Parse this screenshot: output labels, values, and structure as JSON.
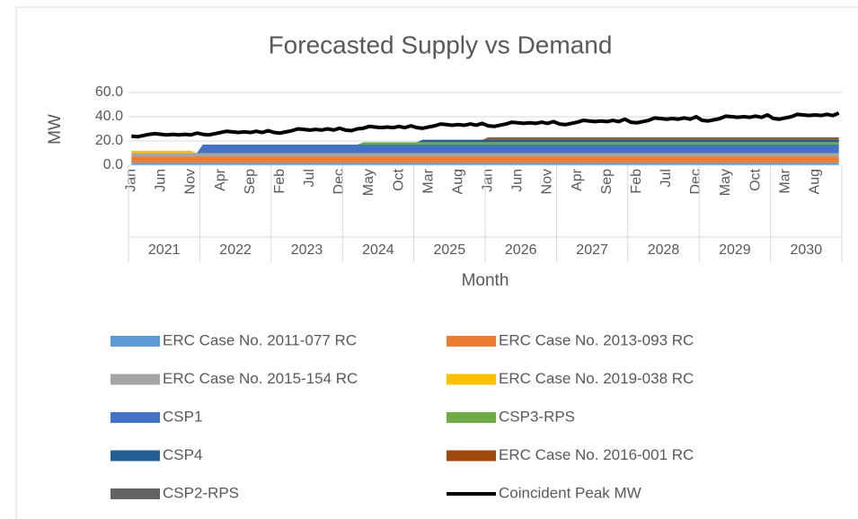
{
  "chart_data": {
    "type": "stacked-area-line",
    "title": "Forecasted Supply vs Demand",
    "ylabel": "MW",
    "xlabel": "Month",
    "ylim": [
      0,
      60
    ],
    "yticks": [
      {
        "value": 0,
        "label": "0.0"
      },
      {
        "value": 20,
        "label": "20.0"
      },
      {
        "value": 40,
        "label": "40.0"
      },
      {
        "value": 60,
        "label": "60.0"
      }
    ],
    "grid": true,
    "legend": "bottom",
    "years": [
      "2021",
      "2022",
      "2023",
      "2024",
      "2025",
      "2026",
      "2027",
      "2028",
      "2029",
      "2030"
    ],
    "categories": [
      "Jan",
      null,
      null,
      null,
      null,
      "Jun",
      null,
      null,
      null,
      null,
      "Nov",
      null,
      null,
      null,
      null,
      "Apr",
      null,
      null,
      null,
      null,
      "Sep",
      null,
      null,
      null,
      null,
      "Feb",
      null,
      null,
      null,
      null,
      "Jul",
      null,
      null,
      null,
      null,
      "Dec",
      null,
      null,
      null,
      null,
      "May",
      null,
      null,
      null,
      null,
      "Oct",
      null,
      null,
      null,
      null,
      "Mar",
      null,
      null,
      null,
      null,
      "Aug",
      null,
      null,
      null,
      null,
      "Jan",
      null,
      null,
      null,
      null,
      "Jun",
      null,
      null,
      null,
      null,
      "Nov",
      null,
      null,
      null,
      null,
      "Apr",
      null,
      null,
      null,
      null,
      "Sep",
      null,
      null,
      null,
      null,
      "Feb",
      null,
      null,
      null,
      null,
      "Jul",
      null,
      null,
      null,
      null,
      "Dec",
      null,
      null,
      null,
      null,
      "May",
      null,
      null,
      null,
      null,
      "Oct",
      null,
      null,
      null,
      null,
      "Mar",
      null,
      null,
      null,
      null,
      "Aug",
      null,
      null,
      null,
      null
    ],
    "series": [
      {
        "name": "ERC Case No. 2011-077 RC",
        "color": "#5b9bd5",
        "kind": "area",
        "values": [
          2,
          2,
          2,
          2,
          2,
          2,
          2,
          2,
          2,
          2,
          2,
          2,
          2,
          2,
          2,
          2,
          2,
          2,
          2,
          2,
          2,
          2,
          2,
          2,
          2,
          2,
          2,
          2,
          2,
          2,
          2,
          2,
          2,
          2,
          2,
          2,
          2,
          2,
          2,
          2,
          2,
          2,
          2,
          2,
          2,
          2,
          2,
          2,
          2,
          2,
          2,
          2,
          2,
          2,
          2,
          2,
          2,
          2,
          2,
          2,
          2,
          2,
          2,
          2,
          2,
          2,
          2,
          2,
          2,
          2,
          2,
          2,
          2,
          2,
          2,
          2,
          2,
          2,
          2,
          2,
          2,
          2,
          2,
          2,
          2,
          2,
          2,
          2,
          2,
          2,
          2,
          2,
          2,
          2,
          2,
          2,
          2,
          2,
          2,
          2,
          2,
          2,
          2,
          2,
          2,
          2,
          2,
          2,
          2,
          2,
          2,
          2,
          2,
          2,
          2,
          2,
          2,
          2,
          2,
          2
        ]
      },
      {
        "name": "ERC Case No. 2013-093 RC",
        "color": "#ed7d31",
        "kind": "area",
        "values": [
          5,
          5,
          5,
          5,
          5,
          5,
          5,
          5,
          5,
          5,
          5,
          5,
          5,
          5,
          5,
          5,
          5,
          5,
          5,
          5,
          5,
          5,
          5,
          5,
          5,
          5,
          5,
          5,
          5,
          5,
          5,
          5,
          5,
          5,
          5,
          5,
          5,
          5,
          5,
          5,
          5,
          5,
          5,
          5,
          5,
          5,
          5,
          5,
          5,
          5,
          5,
          5,
          5,
          5,
          5,
          5,
          5,
          5,
          5,
          5,
          5,
          5,
          5,
          5,
          5,
          5,
          5,
          5,
          5,
          5,
          5,
          5,
          5,
          5,
          5,
          5,
          5,
          5,
          5,
          5,
          5,
          5,
          5,
          5,
          5,
          5,
          5,
          5,
          5,
          5,
          5,
          5,
          5,
          5,
          5,
          5,
          5,
          5,
          5,
          5,
          5,
          5,
          5,
          5,
          5,
          5,
          5,
          5,
          5,
          5,
          5,
          5,
          5,
          5,
          5,
          5,
          5,
          5,
          5,
          5
        ]
      },
      {
        "name": "ERC Case No. 2015-154 RC",
        "color": "#a5a5a5",
        "kind": "area",
        "values": [
          3,
          3,
          3,
          3,
          3,
          3,
          3,
          3,
          3,
          3,
          3,
          3,
          3,
          3,
          3,
          3,
          3,
          3,
          3,
          3,
          3,
          3,
          3,
          3,
          3,
          3,
          3,
          3,
          3,
          3,
          3,
          3,
          3,
          3,
          3,
          3,
          3,
          3,
          3,
          3,
          3,
          3,
          3,
          3,
          3,
          3,
          3,
          3,
          3,
          3,
          3,
          3,
          3,
          3,
          3,
          3,
          3,
          3,
          3,
          3,
          3,
          3,
          3,
          3,
          3,
          3,
          3,
          3,
          3,
          3,
          3,
          3,
          3,
          3,
          3,
          3,
          3,
          3,
          3,
          3,
          3,
          3,
          3,
          3,
          3,
          3,
          3,
          3,
          3,
          3,
          3,
          3,
          3,
          3,
          3,
          3,
          3,
          3,
          3,
          3,
          3,
          3,
          3,
          3,
          3,
          3,
          3,
          3,
          3,
          3,
          3,
          3,
          3,
          3,
          3,
          3,
          3,
          3,
          3,
          3
        ]
      },
      {
        "name": "ERC Case No. 2019-038 RC",
        "color": "#ffc000",
        "kind": "area",
        "values": [
          2,
          2,
          2,
          2,
          2,
          2,
          2,
          2,
          2,
          2,
          2,
          0,
          0,
          0,
          0,
          0,
          0,
          0,
          0,
          0,
          0,
          0,
          0,
          0,
          0,
          0,
          0,
          0,
          0,
          0,
          0,
          0,
          0,
          0,
          0,
          0,
          0,
          0,
          0,
          0,
          0,
          0,
          0,
          0,
          0,
          0,
          0,
          0,
          0,
          0,
          0,
          0,
          0,
          0,
          0,
          0,
          0,
          0,
          0,
          0,
          0,
          0,
          0,
          0,
          0,
          0,
          0,
          0,
          0,
          0,
          0,
          0,
          0,
          0,
          0,
          0,
          0,
          0,
          0,
          0,
          0,
          0,
          0,
          0,
          0,
          0,
          0,
          0,
          0,
          0,
          0,
          0,
          0,
          0,
          0,
          0,
          0,
          0,
          0,
          0,
          0,
          0,
          0,
          0,
          0,
          0,
          0,
          0,
          0,
          0,
          0,
          0,
          0,
          0,
          0,
          0,
          0,
          0,
          0,
          0
        ]
      },
      {
        "name": "CSP1",
        "color": "#4472c4",
        "kind": "area",
        "values": [
          0,
          0,
          0,
          0,
          0,
          0,
          0,
          0,
          0,
          0,
          0,
          0,
          7,
          7,
          7,
          7,
          7,
          7,
          7,
          7,
          7,
          7,
          7,
          7,
          7,
          7,
          7,
          7,
          7,
          7,
          7,
          7,
          7,
          7,
          7,
          7,
          7,
          7,
          7,
          7,
          7,
          7,
          7,
          7,
          7,
          7,
          7,
          7,
          7,
          7,
          7,
          7,
          7,
          7,
          7,
          7,
          7,
          7,
          7,
          7,
          7,
          7,
          7,
          7,
          7,
          7,
          7,
          7,
          7,
          7,
          7,
          7,
          7,
          7,
          7,
          7,
          7,
          7,
          7,
          7,
          7,
          7,
          7,
          7,
          7,
          7,
          7,
          7,
          7,
          7,
          7,
          7,
          7,
          7,
          7,
          7,
          7,
          7,
          7,
          7,
          7,
          7,
          7,
          7,
          7,
          7,
          7,
          7,
          7,
          7,
          7,
          7,
          7,
          7,
          7,
          7,
          7,
          7,
          7,
          7
        ]
      },
      {
        "name": "CSP3-RPS",
        "color": "#70ad47",
        "kind": "area",
        "values": [
          0,
          0,
          0,
          0,
          0,
          0,
          0,
          0,
          0,
          0,
          0,
          0,
          0,
          0,
          0,
          0,
          0,
          0,
          0,
          0,
          0,
          0,
          0,
          0,
          0,
          0,
          0,
          0,
          0,
          0,
          0,
          0,
          0,
          0,
          0,
          0,
          0,
          0,
          0,
          2,
          2,
          2,
          2,
          2,
          2,
          2,
          2,
          2,
          2,
          2,
          2,
          2,
          2,
          2,
          2,
          2,
          2,
          2,
          2,
          2,
          2,
          2,
          2,
          2,
          2,
          2,
          2,
          2,
          2,
          2,
          2,
          2,
          2,
          2,
          2,
          2,
          2,
          2,
          2,
          2,
          2,
          2,
          2,
          2,
          2,
          2,
          2,
          2,
          2,
          2,
          2,
          2,
          2,
          2,
          2,
          2,
          2,
          2,
          2,
          2,
          2,
          2,
          2,
          2,
          2,
          2,
          2,
          2,
          2,
          2,
          2,
          2,
          2,
          2,
          2,
          2,
          2,
          2,
          2,
          2
        ]
      },
      {
        "name": "CSP4",
        "color": "#255e91",
        "kind": "area",
        "values": [
          0,
          0,
          0,
          0,
          0,
          0,
          0,
          0,
          0,
          0,
          0,
          0,
          0,
          0,
          0,
          0,
          0,
          0,
          0,
          0,
          0,
          0,
          0,
          0,
          0,
          0,
          0,
          0,
          0,
          0,
          0,
          0,
          0,
          0,
          0,
          0,
          0,
          0,
          0,
          0,
          0,
          0,
          0,
          0,
          0,
          0,
          0,
          0,
          0,
          2,
          2,
          2,
          2,
          2,
          2,
          2,
          2,
          2,
          2,
          2,
          2,
          2,
          2,
          2,
          2,
          2,
          2,
          2,
          2,
          2,
          2,
          2,
          2,
          2,
          2,
          2,
          2,
          2,
          2,
          2,
          2,
          2,
          2,
          2,
          2,
          2,
          2,
          2,
          2,
          2,
          2,
          2,
          2,
          2,
          2,
          2,
          2,
          2,
          2,
          2,
          2,
          2,
          2,
          2,
          2,
          2,
          2,
          2,
          2,
          2,
          2,
          2,
          2,
          2,
          2,
          2,
          2,
          2,
          2,
          2
        ]
      },
      {
        "name": "ERC Case No. 2016-001 RC",
        "color": "#9e480e",
        "kind": "area",
        "values": [
          0,
          0,
          0,
          0,
          0,
          0,
          0,
          0,
          0,
          0,
          0,
          0,
          0,
          0,
          0,
          0,
          0,
          0,
          0,
          0,
          0,
          0,
          0,
          0,
          0,
          0,
          0,
          0,
          0,
          0,
          0,
          0,
          0,
          0,
          0,
          0,
          0,
          0,
          0,
          0,
          0,
          0,
          0,
          0,
          0,
          0,
          0,
          0,
          0,
          0,
          0,
          0,
          0,
          0,
          0,
          0,
          0,
          0,
          0,
          0,
          1,
          1,
          1,
          1,
          1,
          1,
          1,
          1,
          1,
          1,
          1,
          1,
          1,
          1,
          1,
          1,
          1,
          1,
          1,
          1,
          1,
          1,
          1,
          1,
          1,
          1,
          1,
          1,
          1,
          1,
          1,
          1,
          1,
          1,
          1,
          1,
          1,
          1,
          1,
          1,
          1,
          1,
          1,
          1,
          1,
          1,
          1,
          1,
          1,
          1,
          1,
          1,
          1,
          1,
          1,
          1,
          1,
          1,
          1,
          1
        ]
      },
      {
        "name": "CSP2-RPS",
        "color": "#636363",
        "kind": "area",
        "values": [
          0,
          0,
          0,
          0,
          0,
          0,
          0,
          0,
          0,
          0,
          0,
          0,
          0,
          0,
          0,
          0,
          0,
          0,
          0,
          0,
          0,
          0,
          0,
          0,
          0,
          0,
          0,
          0,
          0,
          0,
          0,
          0,
          0,
          0,
          0,
          0,
          0,
          0,
          0,
          0,
          0,
          0,
          0,
          0,
          0,
          0,
          0,
          0,
          0,
          0,
          0,
          0,
          0,
          0,
          0,
          0,
          0,
          0,
          0,
          0,
          1,
          1,
          1,
          1,
          1,
          1,
          1,
          1,
          1,
          1,
          1,
          1,
          1,
          1,
          1,
          1,
          1,
          1,
          1,
          1,
          1,
          1,
          1,
          1,
          1,
          1,
          1,
          1,
          1,
          1,
          1,
          1,
          1,
          1,
          1,
          1,
          1,
          1,
          1,
          1,
          1,
          1,
          1,
          1,
          1,
          1,
          1,
          1,
          1,
          1,
          1,
          1,
          1,
          1,
          1,
          1,
          1,
          1,
          1,
          1
        ]
      },
      {
        "name": "Coincident Peak MW",
        "color": "#000000",
        "kind": "line",
        "values": [
          24,
          23.5,
          24.5,
          25.5,
          26,
          25.5,
          25,
          25.5,
          25,
          25.5,
          25,
          26.5,
          25.5,
          25,
          26,
          27,
          28,
          27.5,
          27,
          27.5,
          27,
          28,
          27,
          28.5,
          27,
          26.5,
          27.5,
          28.5,
          30,
          29.5,
          29,
          29.5,
          29,
          30,
          29,
          30.5,
          29,
          28.5,
          30,
          30.5,
          32,
          31.5,
          31,
          31.5,
          31,
          32,
          31,
          32.5,
          31,
          30.5,
          31.5,
          32.5,
          34,
          33.5,
          33,
          33.5,
          33,
          34,
          33,
          34.5,
          32.5,
          32,
          33,
          34,
          35.5,
          35,
          34.5,
          35,
          34.5,
          35.5,
          34.5,
          36,
          34,
          33.5,
          34.5,
          35.5,
          37,
          36.5,
          36,
          36.5,
          36,
          37,
          36,
          38,
          35.5,
          35,
          36,
          37,
          39,
          38.5,
          38,
          38.5,
          38,
          39,
          38,
          40,
          37,
          36.5,
          37.5,
          38.5,
          40.5,
          40,
          39.5,
          40,
          39.5,
          40.5,
          39.5,
          41.5,
          38.5,
          38,
          39,
          40,
          42,
          41.5,
          41,
          41.5,
          41,
          42,
          41,
          43
        ]
      }
    ]
  }
}
